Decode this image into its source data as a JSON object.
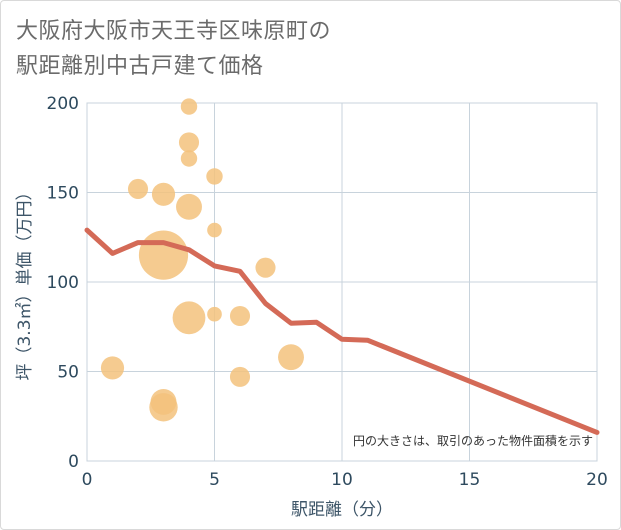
{
  "chart_data": {
    "type": "scatter",
    "title_line1": "大阪府大阪市天王寺区味原町の",
    "title_line2": "駅距離別中古戸建て価格",
    "xlabel": "駅距離（分）",
    "ylabel": "坪（3.3㎡）単価（万円）",
    "xlim": [
      0,
      20
    ],
    "ylim": [
      0,
      200
    ],
    "x_ticks": [
      0,
      5,
      10,
      15,
      20
    ],
    "y_ticks": [
      0,
      50,
      100,
      150,
      200
    ],
    "note": "円の大きさは、取引のあった物件面積を示す",
    "colors": {
      "bubble": "#f3c27d",
      "trend": "#d46a57",
      "grid": "#c8d3dc"
    },
    "points": [
      {
        "x": 1,
        "y": 52,
        "size": 2
      },
      {
        "x": 2,
        "y": 152,
        "size": 1.5
      },
      {
        "x": 3,
        "y": 149,
        "size": 2
      },
      {
        "x": 3,
        "y": 115,
        "size": 9
      },
      {
        "x": 3,
        "y": 33,
        "size": 2.5
      },
      {
        "x": 3,
        "y": 30,
        "size": 3
      },
      {
        "x": 4,
        "y": 198,
        "size": 1
      },
      {
        "x": 4,
        "y": 178,
        "size": 1.5
      },
      {
        "x": 4,
        "y": 169,
        "size": 1
      },
      {
        "x": 4,
        "y": 142,
        "size": 2.5
      },
      {
        "x": 4,
        "y": 80,
        "size": 4
      },
      {
        "x": 5,
        "y": 159,
        "size": 1
      },
      {
        "x": 5,
        "y": 129,
        "size": 0.8
      },
      {
        "x": 5,
        "y": 82,
        "size": 0.8
      },
      {
        "x": 6,
        "y": 81,
        "size": 1.5
      },
      {
        "x": 6,
        "y": 47,
        "size": 1.5
      },
      {
        "x": 7,
        "y": 108,
        "size": 1.5
      },
      {
        "x": 8,
        "y": 58,
        "size": 2.5
      }
    ],
    "trend": {
      "x": [
        0,
        1,
        2,
        3,
        4,
        5,
        6,
        7,
        8,
        9,
        10,
        11,
        20
      ],
      "y": [
        129,
        116,
        122,
        122,
        118,
        109,
        106,
        88,
        77,
        77.5,
        68,
        67.5,
        16
      ]
    }
  }
}
